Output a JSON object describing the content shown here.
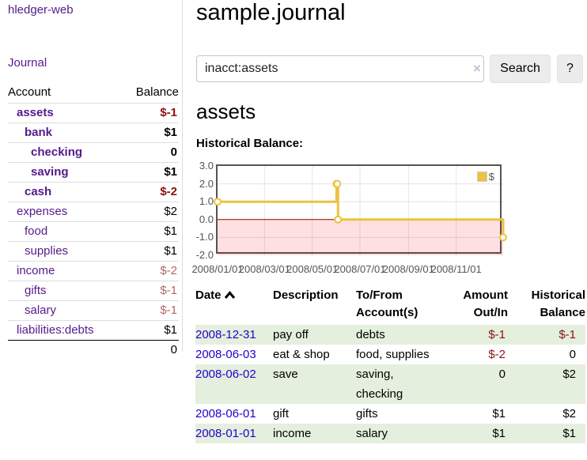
{
  "app": {
    "title": "hledger-web",
    "nav_journal": "Journal"
  },
  "sidebar": {
    "headers": {
      "account": "Account",
      "balance": "Balance"
    },
    "rows": [
      {
        "name": "assets",
        "balance": "$-1"
      },
      {
        "name": "bank",
        "balance": "$1"
      },
      {
        "name": "checking",
        "balance": "0"
      },
      {
        "name": "saving",
        "balance": "$1"
      },
      {
        "name": "cash",
        "balance": "$-2"
      },
      {
        "name": "expenses",
        "balance": "$2"
      },
      {
        "name": "food",
        "balance": "$1"
      },
      {
        "name": "supplies",
        "balance": "$1"
      },
      {
        "name": "income",
        "balance": "$-2"
      },
      {
        "name": "gifts",
        "balance": "$-1"
      },
      {
        "name": "salary",
        "balance": "$-1"
      },
      {
        "name": "liabilities:debts",
        "balance": "$1"
      }
    ],
    "total": "0"
  },
  "main": {
    "title": "sample.journal",
    "search": {
      "value": "inacct:assets",
      "clear_icon": "×",
      "button": "Search",
      "help": "?"
    },
    "account_heading": "assets",
    "chart_label": "Historical Balance:"
  },
  "chart_data": {
    "type": "line",
    "step": true,
    "title": "Historical Balance of assets",
    "series": [
      {
        "name": "$",
        "color": "#edc240",
        "points": [
          [
            "2008-01-01",
            1
          ],
          [
            "2008-06-01",
            2
          ],
          [
            "2008-06-02",
            2
          ],
          [
            "2008-06-03",
            0
          ],
          [
            "2008-12-31",
            -1
          ]
        ]
      }
    ],
    "xlim": [
      "2008-01-01",
      "2008-12-31"
    ],
    "ylim": [
      -2,
      3
    ],
    "yticks": [
      3,
      2,
      1,
      0,
      -1,
      -2
    ],
    "xticks": [
      {
        "date": "2008-01-01",
        "label": "2008/01/01"
      },
      {
        "date": "2008-03-01",
        "label": "2008/03/01"
      },
      {
        "date": "2008-05-01",
        "label": "2008/05/01"
      },
      {
        "date": "2008-07-01",
        "label": "2008/07/01"
      },
      {
        "date": "2008-09-01",
        "label": "2008/09/01"
      },
      {
        "date": "2008-11-01",
        "label": "2008/11/01"
      }
    ],
    "legend_position": "top-right",
    "grid": true,
    "zero_line_color": "#8b0000",
    "negative_region_color": "rgba(255,0,0,0.12)"
  },
  "register": {
    "headers": {
      "date": "Date",
      "description": "Description",
      "tofrom": "To/From Account(s)",
      "amount": "Amount Out/In",
      "balance": "Historical Balance"
    },
    "rows": [
      {
        "date": "2008-12-31",
        "description": "pay off",
        "tofrom": "debts",
        "amount": "$-1",
        "balance": "$-1"
      },
      {
        "date": "2008-06-03",
        "description": "eat & shop",
        "tofrom": "food, supplies",
        "amount": "$-2",
        "balance": "0"
      },
      {
        "date": "2008-06-02",
        "description": "save",
        "tofrom": "saving,\nchecking",
        "amount": "0",
        "balance": "$2"
      },
      {
        "date": "2008-06-01",
        "description": "gift",
        "tofrom": "gifts",
        "amount": "$1",
        "balance": "$2"
      },
      {
        "date": "2008-01-01",
        "description": "income",
        "tofrom": "salary",
        "amount": "$1",
        "balance": "$1"
      }
    ]
  }
}
